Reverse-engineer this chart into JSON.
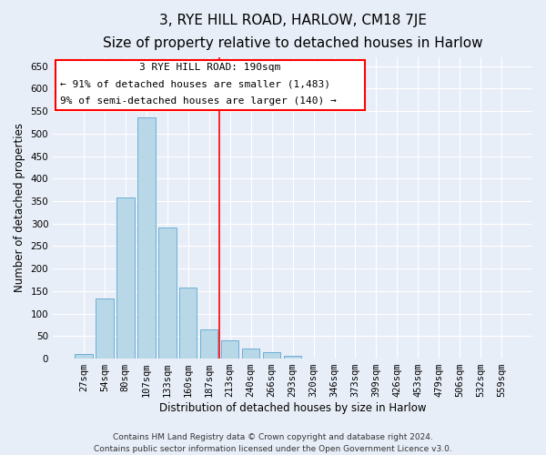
{
  "title": "3, RYE HILL ROAD, HARLOW, CM18 7JE",
  "subtitle": "Size of property relative to detached houses in Harlow",
  "xlabel": "Distribution of detached houses by size in Harlow",
  "ylabel": "Number of detached properties",
  "bar_labels": [
    "27sqm",
    "54sqm",
    "80sqm",
    "107sqm",
    "133sqm",
    "160sqm",
    "187sqm",
    "213sqm",
    "240sqm",
    "266sqm",
    "293sqm",
    "320sqm",
    "346sqm",
    "373sqm",
    "399sqm",
    "426sqm",
    "453sqm",
    "479sqm",
    "506sqm",
    "532sqm",
    "559sqm"
  ],
  "bar_values": [
    10,
    133,
    358,
    535,
    291,
    158,
    64,
    40,
    22,
    14,
    6,
    0,
    0,
    0,
    0,
    1,
    0,
    0,
    0,
    0,
    1
  ],
  "bar_color": "#b8d8e8",
  "bar_edge_color": "#6baed6",
  "highlight_bar_index": 6,
  "ylim": [
    0,
    670
  ],
  "yticks": [
    0,
    50,
    100,
    150,
    200,
    250,
    300,
    350,
    400,
    450,
    500,
    550,
    600,
    650
  ],
  "annotation_title": "3 RYE HILL ROAD: 190sqm",
  "annotation_line1": "← 91% of detached houses are smaller (1,483)",
  "annotation_line2": "9% of semi-detached houses are larger (140) →",
  "footer_line1": "Contains HM Land Registry data © Crown copyright and database right 2024.",
  "footer_line2": "Contains public sector information licensed under the Open Government Licence v3.0.",
  "background_color": "#e8eef8",
  "grid_color": "#ffffff",
  "title_fontsize": 11,
  "subtitle_fontsize": 9.5,
  "axis_label_fontsize": 8.5,
  "tick_fontsize": 7.5,
  "annotation_fontsize": 8,
  "footer_fontsize": 6.5
}
